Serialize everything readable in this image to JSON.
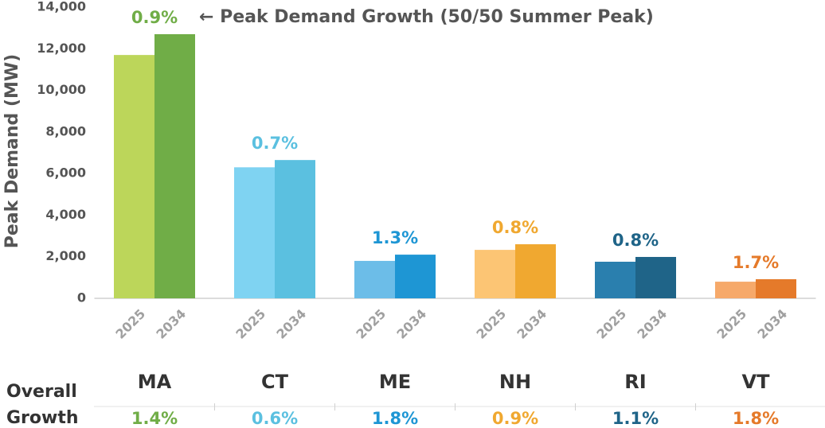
{
  "chart_data": {
    "type": "bar",
    "annotation": "← Peak Demand Growth (50/50 Summer Peak)",
    "y_label": "Peak Demand (MW)",
    "categories": [
      "MA",
      "CT",
      "ME",
      "NH",
      "RI",
      "VT"
    ],
    "series": [
      {
        "name": "2025",
        "colors": [
          "#bcd65a",
          "#7fd3f2",
          "#6cbde8",
          "#fcc574",
          "#2a7fae",
          "#f6a96a"
        ],
        "values": [
          11700,
          6300,
          1800,
          2330,
          1760,
          800
        ]
      },
      {
        "name": "2034",
        "colors": [
          "#70ad47",
          "#5bc0e0",
          "#1e96d4",
          "#f0a830",
          "#1f6488",
          "#e57a2a"
        ],
        "values": [
          12700,
          6650,
          2100,
          2600,
          1990,
          920
        ]
      }
    ],
    "annual_growth": {
      "values": [
        0.9,
        0.7,
        1.3,
        0.8,
        0.8,
        1.7
      ],
      "value_labels": [
        "0.9%",
        "0.7%",
        "1.3%",
        "0.8%",
        "0.8%",
        "1.7%"
      ]
    },
    "overall_growth": {
      "label": "Overall Growth",
      "values": [
        1.4,
        0.6,
        1.8,
        0.9,
        1.1,
        1.8
      ],
      "value_labels": [
        "1.4%",
        "0.6%",
        "1.8%",
        "0.9%",
        "1.1%",
        "1.8%"
      ]
    },
    "ylim": [
      0,
      14000
    ],
    "yticks": [
      0,
      {
        "value": 2000,
        "label": "2,000"
      },
      {
        "value": 4000,
        "label": "4,000"
      },
      {
        "value": 6000,
        "label": "6,000"
      },
      {
        "value": 8000,
        "label": "8,000"
      },
      {
        "value": 10000,
        "label": "10,000"
      },
      {
        "value": 12000,
        "label": "12,000"
      },
      {
        "value": 14000,
        "label": "14,000"
      }
    ],
    "grid": false
  }
}
